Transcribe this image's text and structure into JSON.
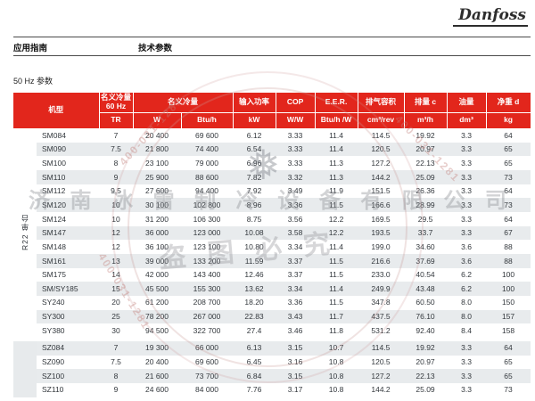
{
  "page": {
    "logo": "Danfoss",
    "nav_left": "应用指南",
    "nav_right": "技术参数",
    "section_title": "50 Hz 参数"
  },
  "table": {
    "header": {
      "model": "机型",
      "capacity60": "名义冷量",
      "capacity60_sub": "60 Hz",
      "capacity60_unit": "TR",
      "capacity": "名义冷量",
      "capacity_unit_w": "W",
      "capacity_unit_btu": "Btu/h",
      "power": "输入功率",
      "power_unit": "kW",
      "cop": "COP",
      "cop_unit": "W/W",
      "eer": "E.E.R.",
      "eer_unit": "Btu/h /W",
      "disp_volume": "排气容积",
      "disp_volume_unit": "cm³/rev",
      "displacement": "排量 c",
      "displacement_unit": "m³/h",
      "oil": "油量",
      "oil_unit": "dm³",
      "weight": "净重 d",
      "weight_unit": "kg"
    },
    "groups": [
      {
        "label": "R22 单台",
        "rows": [
          [
            "SM084",
            "7",
            "20 400",
            "69 600",
            "6.12",
            "3.33",
            "11.4",
            "114.5",
            "19.92",
            "3.3",
            "64"
          ],
          [
            "SM090",
            "7.5",
            "21 800",
            "74 400",
            "6.54",
            "3.33",
            "11.4",
            "120.5",
            "20.97",
            "3.3",
            "65"
          ],
          [
            "SM100",
            "8",
            "23 100",
            "79 000",
            "6.96",
            "3.33",
            "11.3",
            "127.2",
            "22.13",
            "3.3",
            "65"
          ],
          [
            "SM110",
            "9",
            "25 900",
            "88 600",
            "7.82",
            "3.32",
            "11.3",
            "144.2",
            "25.09",
            "3.3",
            "73"
          ],
          [
            "SM112",
            "9.5",
            "27 600",
            "94 400",
            "7.92",
            "3.49",
            "11.9",
            "151.5",
            "26.36",
            "3.3",
            "64"
          ],
          [
            "SM120",
            "10",
            "30 100",
            "102 800",
            "8.96",
            "3.36",
            "11.5",
            "166.6",
            "28.99",
            "3.3",
            "73"
          ],
          [
            "SM124",
            "10",
            "31 200",
            "106 300",
            "8.75",
            "3.56",
            "12.2",
            "169.5",
            "29.5",
            "3.3",
            "64"
          ],
          [
            "SM147",
            "12",
            "36 000",
            "123 000",
            "10.08",
            "3.58",
            "12.2",
            "193.5",
            "33.7",
            "3.3",
            "67"
          ],
          [
            "SM148",
            "12",
            "36 100",
            "123 100",
            "10.80",
            "3.34",
            "11.4",
            "199.0",
            "34.60",
            "3.6",
            "88"
          ],
          [
            "SM161",
            "13",
            "39 000",
            "133 200",
            "11.59",
            "3.37",
            "11.5",
            "216.6",
            "37.69",
            "3.6",
            "88"
          ],
          [
            "SM175",
            "14",
            "42 000",
            "143 400",
            "12.46",
            "3.37",
            "11.5",
            "233.0",
            "40.54",
            "6.2",
            "100"
          ],
          [
            "SM/SY185",
            "15",
            "45 500",
            "155 300",
            "13.62",
            "3.34",
            "11.4",
            "249.9",
            "43.48",
            "6.2",
            "100"
          ],
          [
            "SY240",
            "20",
            "61 200",
            "208 700",
            "18.20",
            "3.36",
            "11.5",
            "347.8",
            "60.50",
            "8.0",
            "150"
          ],
          [
            "SY300",
            "25",
            "78 200",
            "267 000",
            "22.83",
            "3.43",
            "11.7",
            "437.5",
            "76.10",
            "8.0",
            "157"
          ],
          [
            "SY380",
            "30",
            "94 500",
            "322 700",
            "27.4",
            "3.46",
            "11.8",
            "531.2",
            "92.40",
            "8.4",
            "158"
          ]
        ]
      },
      {
        "label": "",
        "rows": [
          [
            "SZ084",
            "7",
            "19 300",
            "66 000",
            "6.13",
            "3.15",
            "10.7",
            "114.5",
            "19.92",
            "3.3",
            "64"
          ],
          [
            "SZ090",
            "7.5",
            "20 400",
            "69 600",
            "6.45",
            "3.16",
            "10.8",
            "120.5",
            "20.97",
            "3.3",
            "65"
          ],
          [
            "SZ100",
            "8",
            "21 600",
            "73 700",
            "6.84",
            "3.15",
            "10.8",
            "127.2",
            "22.13",
            "3.3",
            "65"
          ],
          [
            "SZ110",
            "9",
            "24 600",
            "84 000",
            "7.76",
            "3.17",
            "10.8",
            "144.2",
            "25.09",
            "3.3",
            "73"
          ]
        ]
      }
    ]
  },
  "watermark": {
    "company": "济南冰雷制冷设备有限公司",
    "notice": "盗图必究",
    "phone": "400-031-1281",
    "snowflake": "❅"
  },
  "colors": {
    "header_red": "#e2261c",
    "stripe_gray": "#e8ebed"
  }
}
